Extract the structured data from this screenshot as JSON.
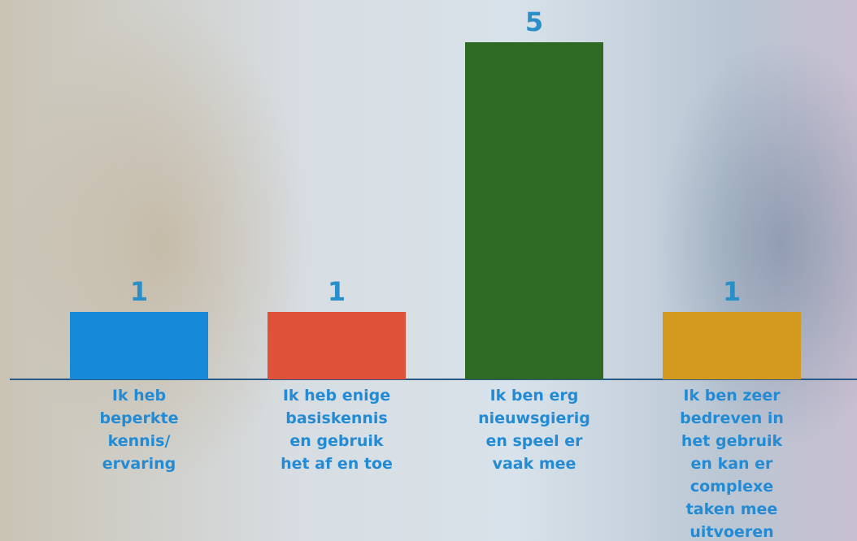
{
  "chart_data": {
    "type": "bar",
    "categories": [
      "Ik heb\nbeperkte\nkennis/\nervaring",
      "Ik heb enige\nbasiskennis\nen gebruik\nhet af en toe",
      "Ik ben erg\nnieuwsgierig\nen speel er\nvaak mee",
      "Ik ben zeer\nbedreven in\nhet gebruik\nen kan er\ncomplexe\ntaken mee\nuitvoeren"
    ],
    "values": [
      1,
      1,
      5,
      1
    ],
    "colors": [
      "#1789d9",
      "#e0513a",
      "#2f6a25",
      "#d49a1f"
    ]
  }
}
